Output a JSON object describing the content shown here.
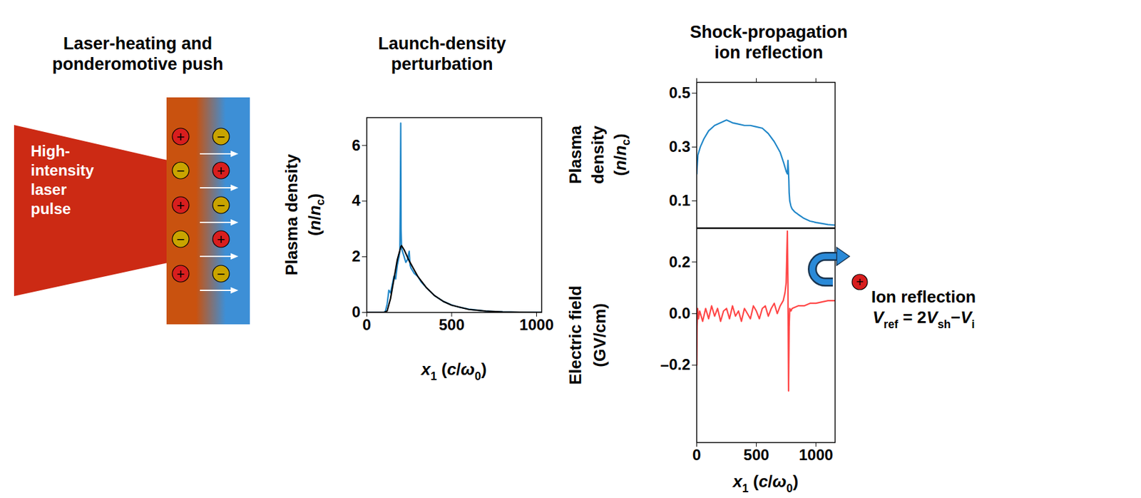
{
  "diagram": {
    "title": "Laser-heating and ponderomotive push",
    "laser_label": "High-intensity laser pulse",
    "particles": [
      [
        "+",
        "−",
        "+",
        "−",
        "+"
      ],
      [
        "−",
        "+",
        "−",
        "+",
        "−"
      ]
    ]
  },
  "chart_data": [
    {
      "type": "line",
      "title": "Launch-density perturbation",
      "xlabel": [
        [
          "x",
          [
            "1"
          ],
          " (",
          "c",
          "/",
          "ω",
          [
            "0"
          ],
          ")"
        ]
      ],
      "ylabel": [
        [
          "Plasma density"
        ],
        [
          "(",
          "n",
          "/",
          "n",
          [
            "c"
          ],
          ")"
        ]
      ],
      "xlim": [
        0,
        1030
      ],
      "xticks": [
        0,
        500,
        1000
      ],
      "ylim": [
        0,
        7
      ],
      "yticks": [
        0,
        2,
        4,
        6
      ],
      "grid": false,
      "series": [
        {
          "color": "#1f86c8",
          "x": [
            0,
            100,
            110,
            120,
            130,
            140,
            150,
            160,
            170,
            180,
            190,
            195,
            198,
            200,
            202,
            205,
            210,
            220,
            230,
            240,
            250,
            255,
            260,
            270,
            280,
            300,
            320,
            350,
            400,
            450,
            500,
            550,
            600,
            700,
            800,
            900,
            1030
          ],
          "values": [
            0,
            0,
            0.05,
            0.3,
            0.8,
            0.7,
            1.0,
            1.3,
            1.2,
            1.7,
            2.0,
            2.2,
            4.5,
            6.8,
            3.0,
            2.3,
            2.2,
            2.0,
            1.8,
            1.9,
            2.2,
            1.7,
            1.6,
            1.5,
            1.4,
            1.3,
            1.1,
            0.9,
            0.6,
            0.4,
            0.27,
            0.18,
            0.12,
            0.05,
            0.02,
            0.01,
            0.01
          ]
        },
        {
          "color": "#000000",
          "x": [
            0,
            100,
            120,
            140,
            160,
            180,
            200,
            205,
            220,
            250,
            300,
            350,
            400,
            450,
            500,
            600,
            700,
            800,
            900,
            1030
          ],
          "values": [
            0,
            0,
            0.05,
            0.5,
            1.2,
            1.9,
            2.35,
            2.4,
            2.25,
            1.85,
            1.3,
            0.9,
            0.6,
            0.4,
            0.26,
            0.11,
            0.05,
            0.02,
            0.01,
            0
          ]
        }
      ]
    },
    {
      "type": "line",
      "title": "Shock-propagation ion reflection",
      "ylabel": [
        [
          "Plasma"
        ],
        [
          "density"
        ],
        [
          "(",
          "n",
          "/",
          "n",
          [
            "c"
          ],
          ")"
        ]
      ],
      "xlim": [
        0,
        1160
      ],
      "xticks": [
        0,
        500,
        1000
      ],
      "ylim": [
        0,
        0.54
      ],
      "yticks": [
        0.1,
        0.3,
        0.5
      ],
      "tick_labels": "y",
      "grid": false,
      "series": [
        {
          "color": "#1f86c8",
          "x": [
            0,
            10,
            30,
            60,
            100,
            150,
            200,
            250,
            300,
            350,
            400,
            450,
            500,
            550,
            600,
            650,
            700,
            730,
            750,
            760,
            765,
            770,
            772,
            775,
            780,
            790,
            800,
            820,
            850,
            900,
            950,
            1000,
            1100,
            1160
          ],
          "values": [
            0.2,
            0.27,
            0.3,
            0.33,
            0.36,
            0.38,
            0.39,
            0.4,
            0.39,
            0.385,
            0.38,
            0.38,
            0.375,
            0.37,
            0.35,
            0.32,
            0.28,
            0.24,
            0.21,
            0.2,
            0.25,
            0.2,
            0.18,
            0.13,
            0.1,
            0.08,
            0.07,
            0.06,
            0.05,
            0.035,
            0.025,
            0.02,
            0.012,
            0.01
          ]
        }
      ]
    },
    {
      "type": "line",
      "xlabel": [
        [
          "x",
          [
            "1"
          ],
          " (",
          "c",
          "/",
          "ω",
          [
            "0"
          ],
          ")"
        ]
      ],
      "ylabel": [
        [
          "Electric field"
        ],
        [
          "(GV/cm)"
        ]
      ],
      "xlim": [
        0,
        1160
      ],
      "xticks": [
        0,
        500,
        1000
      ],
      "ylim": [
        -0.5,
        0.33
      ],
      "yticks": [
        {
          "value": -0.2,
          "label": "–0.2"
        },
        {
          "value": 0,
          "label": "0.0"
        },
        0.2
      ],
      "grid": false,
      "series": [
        {
          "color": "#ff4545",
          "x": [
            0,
            3,
            8,
            15,
            25,
            50,
            75,
            100,
            125,
            150,
            175,
            200,
            225,
            250,
            275,
            300,
            325,
            350,
            375,
            400,
            425,
            450,
            475,
            500,
            525,
            550,
            575,
            600,
            625,
            650,
            675,
            700,
            725,
            740,
            750,
            760,
            765,
            770,
            775,
            780,
            790,
            800,
            850,
            900,
            950,
            1000,
            1050,
            1100,
            1160
          ],
          "values": [
            -0.2,
            -0.05,
            0.02,
            -0.02,
            0.01,
            -0.03,
            0.02,
            -0.02,
            0.03,
            -0.01,
            0.02,
            -0.03,
            0.01,
            0.02,
            -0.02,
            0.03,
            -0.01,
            0.01,
            -0.03,
            0.02,
            0.0,
            -0.02,
            0.03,
            0.01,
            -0.02,
            0.02,
            0.03,
            -0.01,
            0.02,
            0.04,
            0.0,
            0.03,
            0.05,
            0.08,
            0.12,
            0.32,
            0.1,
            -0.3,
            -0.05,
            0.02,
            0.01,
            0.02,
            0.03,
            0.03,
            0.04,
            0.04,
            0.045,
            0.05,
            0.05
          ]
        }
      ]
    }
  ],
  "annotation": {
    "text": "Ion reflection",
    "formula": [
      "V",
      [
        "ref"
      ],
      " = 2",
      "V",
      [
        "sh"
      ],
      "−",
      "V",
      [
        "i"
      ]
    ]
  }
}
